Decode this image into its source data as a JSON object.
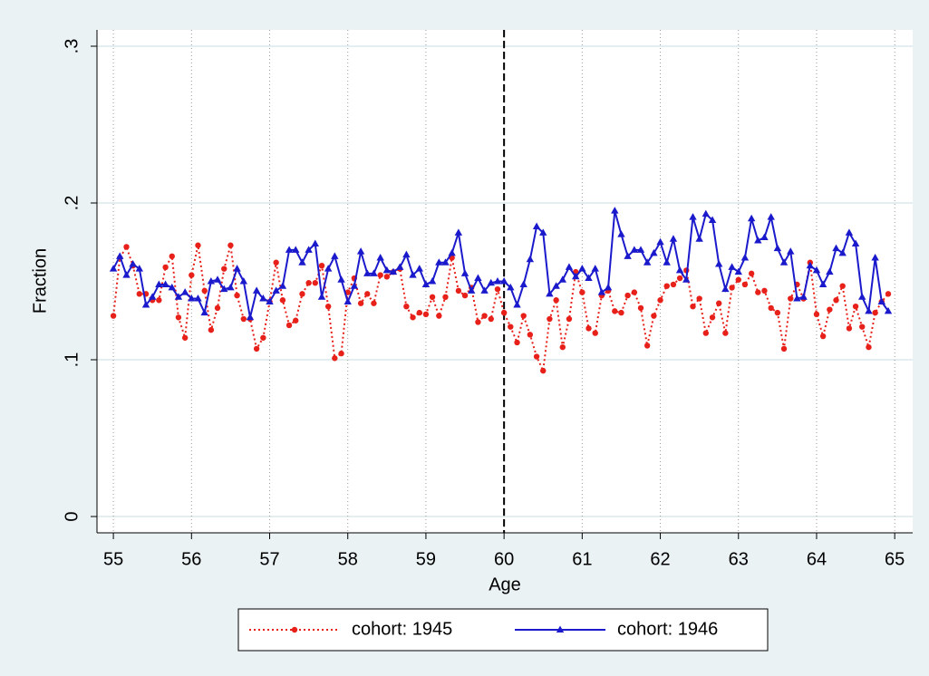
{
  "chart_data": {
    "type": "line",
    "x_label": "Age",
    "y_label": "Fraction",
    "x": [
      55,
      55.083,
      55.167,
      55.25,
      55.333,
      55.417,
      55.5,
      55.583,
      55.667,
      55.75,
      55.833,
      55.917,
      56,
      56.083,
      56.167,
      56.25,
      56.333,
      56.417,
      56.5,
      56.583,
      56.667,
      56.75,
      56.833,
      56.917,
      57,
      57.083,
      57.167,
      57.25,
      57.333,
      57.417,
      57.5,
      57.583,
      57.667,
      57.75,
      57.833,
      57.917,
      58,
      58.083,
      58.167,
      58.25,
      58.333,
      58.417,
      58.5,
      58.583,
      58.667,
      58.75,
      58.833,
      58.917,
      59,
      59.083,
      59.167,
      59.25,
      59.333,
      59.417,
      59.5,
      59.583,
      59.667,
      59.75,
      59.833,
      59.917,
      60,
      60.083,
      60.167,
      60.25,
      60.333,
      60.417,
      60.5,
      60.583,
      60.667,
      60.75,
      60.833,
      60.917,
      61,
      61.083,
      61.167,
      61.25,
      61.333,
      61.417,
      61.5,
      61.583,
      61.667,
      61.75,
      61.833,
      61.917,
      62,
      62.083,
      62.167,
      62.25,
      62.333,
      62.417,
      62.5,
      62.583,
      62.667,
      62.75,
      62.833,
      62.917,
      63,
      63.083,
      63.167,
      63.25,
      63.333,
      63.417,
      63.5,
      63.583,
      63.667,
      63.75,
      63.833,
      63.917,
      64,
      64.083,
      64.167,
      64.25,
      64.333,
      64.417,
      64.5,
      64.583,
      64.667,
      64.75,
      64.833,
      64.917
    ],
    "series": [
      {
        "name": "cohort: 1945",
        "color": "#e8201a",
        "dash": "dotted",
        "marker": "circle",
        "values": [
          0.128,
          0.165,
          0.172,
          0.16,
          0.142,
          0.142,
          0.138,
          0.138,
          0.159,
          0.166,
          0.127,
          0.114,
          0.154,
          0.173,
          0.144,
          0.119,
          0.133,
          0.158,
          0.173,
          0.141,
          0.126,
          0.126,
          0.107,
          0.114,
          0.137,
          0.162,
          0.138,
          0.122,
          0.125,
          0.142,
          0.149,
          0.149,
          0.16,
          0.134,
          0.101,
          0.104,
          0.143,
          0.152,
          0.136,
          0.142,
          0.136,
          0.154,
          0.153,
          0.156,
          0.158,
          0.134,
          0.127,
          0.13,
          0.129,
          0.14,
          0.128,
          0.14,
          0.165,
          0.144,
          0.141,
          0.146,
          0.124,
          0.128,
          0.126,
          0.145,
          0.13,
          0.121,
          0.111,
          0.128,
          0.116,
          0.102,
          0.093,
          0.126,
          0.138,
          0.108,
          0.126,
          0.156,
          0.143,
          0.12,
          0.117,
          0.141,
          0.144,
          0.131,
          0.13,
          0.141,
          0.143,
          0.133,
          0.109,
          0.128,
          0.138,
          0.147,
          0.148,
          0.152,
          0.157,
          0.134,
          0.139,
          0.117,
          0.127,
          0.136,
          0.117,
          0.146,
          0.151,
          0.148,
          0.155,
          0.143,
          0.144,
          0.133,
          0.13,
          0.107,
          0.139,
          0.148,
          0.139,
          0.162,
          0.129,
          0.115,
          0.132,
          0.138,
          0.147,
          0.12,
          0.134,
          0.121,
          0.108,
          0.13,
          0.137,
          0.142
        ]
      },
      {
        "name": "cohort: 1946",
        "color": "#1a1acc",
        "dash": "solid",
        "marker": "triangle",
        "values": [
          0.158,
          0.166,
          0.154,
          0.161,
          0.158,
          0.135,
          0.14,
          0.148,
          0.148,
          0.146,
          0.14,
          0.143,
          0.139,
          0.139,
          0.13,
          0.15,
          0.151,
          0.145,
          0.146,
          0.158,
          0.15,
          0.127,
          0.144,
          0.139,
          0.137,
          0.144,
          0.147,
          0.17,
          0.17,
          0.162,
          0.17,
          0.174,
          0.14,
          0.158,
          0.166,
          0.151,
          0.137,
          0.147,
          0.169,
          0.155,
          0.155,
          0.165,
          0.157,
          0.156,
          0.159,
          0.167,
          0.154,
          0.158,
          0.148,
          0.15,
          0.162,
          0.162,
          0.168,
          0.181,
          0.155,
          0.144,
          0.152,
          0.144,
          0.149,
          0.15,
          0.15,
          0.146,
          0.135,
          0.148,
          0.164,
          0.185,
          0.181,
          0.142,
          0.147,
          0.151,
          0.159,
          0.153,
          0.158,
          0.152,
          0.158,
          0.143,
          0.146,
          0.195,
          0.18,
          0.166,
          0.17,
          0.17,
          0.162,
          0.168,
          0.175,
          0.162,
          0.177,
          0.157,
          0.151,
          0.191,
          0.177,
          0.193,
          0.189,
          0.161,
          0.145,
          0.159,
          0.156,
          0.165,
          0.19,
          0.176,
          0.178,
          0.191,
          0.171,
          0.162,
          0.169,
          0.139,
          0.14,
          0.16,
          0.157,
          0.148,
          0.156,
          0.171,
          0.168,
          0.181,
          0.174,
          0.14,
          0.131,
          0.165,
          0.137,
          0.131
        ]
      }
    ],
    "xlim": [
      54.79,
      65.23
    ],
    "ylim": [
      -0.0104,
      0.3104
    ],
    "xticks": [
      55,
      56,
      57,
      58,
      59,
      60,
      61,
      62,
      63,
      64,
      65
    ],
    "yticks": [
      0,
      {
        "value": 0.1,
        "label": ".1"
      },
      {
        "value": 0.2,
        "label": ".2"
      },
      {
        "value": 0.3,
        "label": ".3"
      }
    ],
    "xline": 60,
    "grid": true,
    "legend": "bottom"
  }
}
